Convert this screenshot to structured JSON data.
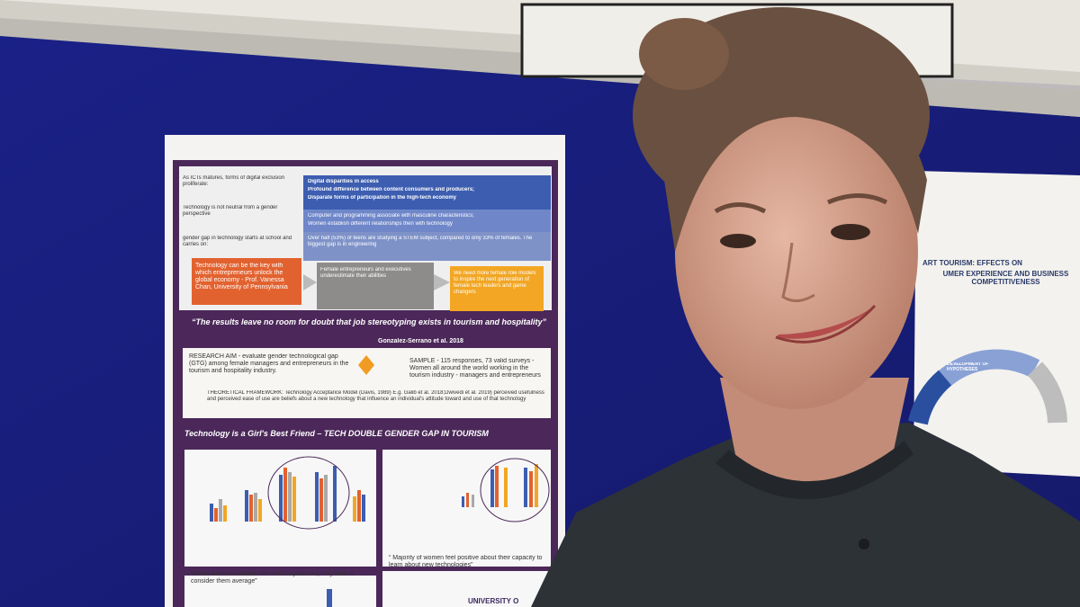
{
  "poster": {
    "intro_labels": [
      "As ICTs matures, forms of digital exclusion proliferate:",
      "Technology is not neutral from a gender perspective",
      "gender gap in technology starts at school and carries on:"
    ],
    "box_1": [
      "Digital disparities in access",
      "Profound difference between content consumers and producers;",
      "Disparate forms of participation in the high-tech economy"
    ],
    "box_2": [
      "Computer and programming associate with masculine characteristics;",
      "Women establish different relationships then with technology"
    ],
    "box_3": "Over half (53%) of teens are studying a STEM subject, compared to only 33% of females. The biggest gap is in engineering",
    "quote_left": "Technology can be the key with which entrepreneurs unlock the global economy - Prof. Vanessa Chan, University of Pennsylvania",
    "quote_middle": "Female entrepreneurs and executives underestimate their abilities",
    "quote_right": "We need more female role models to inspire the next generation of female tech leaders and game changers",
    "main_quote": "“The results leave no room for doubt that job stereotyping exists in tourism and hospitality”",
    "main_quote_source": "Gonzalez-Serrano et al. 2018",
    "research_aim": "RESEARCH AIM - evaluate gender technological gap (GTG) among female managers and entrepreneurs in the tourism and hospitality industry.",
    "sample": "SAMPLE - 115 responses, 73 valid surveys - Women all around the world working in the tourism industry - managers and entrepreneurs",
    "framework": "THEORETICAL FRAMEWORK: Technology Acceptance Model (Davis, 1989) E.g. Galib et al. 2018;Dwivedi et al. 2019) perceived usefulness and perceived ease of use are beliefs about a new technology that influence an individual's attitude toward and use of that technology",
    "section_title": "Technology is a Girl's Best Friend – TECH DOUBLE GENDER GAP IN TOURISM",
    "finding_left": "“When women evaluate their tech capabilities, they tend to consider them average”",
    "finding_right": "“ Majority of women feel positive about their capacity to learn about new technologies”",
    "logo": "UNIVERSITY O"
  },
  "side_poster": {
    "title_1": "ART TOURISM: EFFECTS ON",
    "title_2": "UMER EXPERIENCE AND BUSINESS COMPETITIVENESS",
    "diagram_label": "DEVELOPMENT OF HYPOTHESES"
  }
}
